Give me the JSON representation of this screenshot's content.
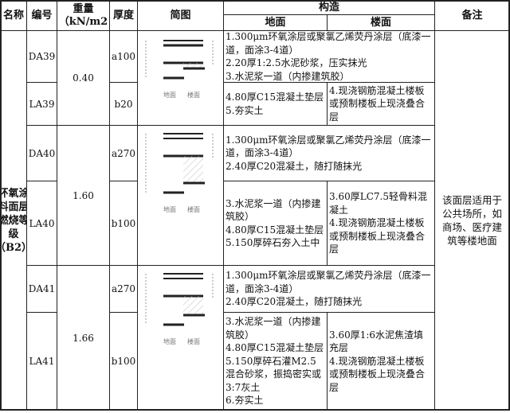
{
  "header": {
    "name": "名称",
    "code": "编号",
    "weight": "重量（kN/m2",
    "thickness": "厚度",
    "diagram": "简图",
    "construction": "构造",
    "ground": "地面",
    "floor": "楼面",
    "remark": "备注"
  },
  "category": "环氧涂料面层 燃烧等级（B2）",
  "remark": "该面层适用于公共场所，如商场、医疗建筑等楼地面",
  "diagram_labels": {
    "ground": "地面",
    "floor": "楼面"
  },
  "rows": [
    {
      "code_a": "DA39",
      "code_b": "LA39",
      "weight": "0.40",
      "thick_a": "a100",
      "thick_b": "b20",
      "common": [
        "1.300μm环氧涂层或聚氯乙烯荧丹涂层（底漆一道，面涂3-4道）",
        "2.20厚1:2.5水泥砂浆，压实抹光",
        "3.水泥浆一道（内掺建筑胶）"
      ],
      "ground": [
        "4.80厚C15混凝土垫层",
        "5.夯实土"
      ],
      "floor": [
        "4.现浇钢筋混凝土楼板或预制楼板上现浇叠合层"
      ]
    },
    {
      "code_a": "DA40",
      "code_b": "LA40",
      "weight": "1.60",
      "thick_a": "a270",
      "thick_b": "b100",
      "common": [
        "1.300μm环氧涂层或聚氯乙烯荧丹涂层（底漆一道，面涂3-4道）",
        "2.40厚C20混凝土，随打随抹光"
      ],
      "ground": [
        "3.水泥浆一道（内掺建筑胶）",
        "4.80厚C15混凝土垫层",
        "5.150厚碎石夯入土中"
      ],
      "floor": [
        "3.60厚LC7.5轻骨料混凝土",
        "4.现浇钢筋混凝土楼板或预制楼板上现浇叠合层"
      ]
    },
    {
      "code_a": "DA41",
      "code_b": "LA41",
      "weight": "1.66",
      "thick_a": "a270",
      "thick_b": "b100",
      "common": [
        "1.300μm环氧涂层或聚氯乙烯荧丹涂层（底漆一道，面涂3-4道）",
        "2.40厚C20混凝土，随打随抹光"
      ],
      "ground": [
        "3.水泥浆一道（内掺建筑胶）",
        "4.80厚C15混凝土垫层5.150厚碎石灌M2.5混合砂浆，振捣密实或3:7灰土",
        "6.夯实土"
      ],
      "floor": [
        "3.60厚1:6水泥焦渣填充层",
        "4.现浇钢筋混凝土楼板或预制楼板上现浇叠合层"
      ]
    }
  ]
}
